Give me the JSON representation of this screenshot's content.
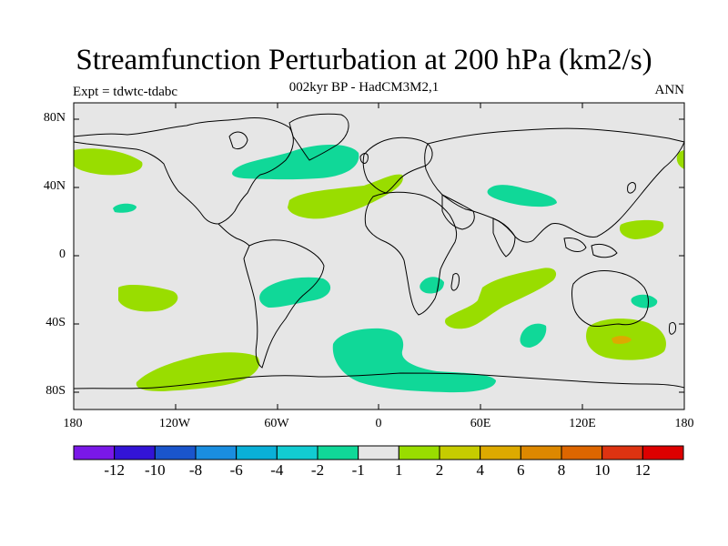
{
  "header": {
    "title": "Streamfunction Perturbation at 200 hPa (km2/s)",
    "subtitle": "002kyr BP - HadCM3M2,1",
    "left_string": "Expt = tdwtc-tdabc",
    "right_string": "ANN"
  },
  "axes": {
    "lat_labels": [
      "80N",
      "40N",
      "0",
      "40S",
      "80S"
    ],
    "lon_labels": [
      "180",
      "120W",
      "60W",
      "0",
      "60E",
      "120E",
      "180"
    ]
  },
  "colorbar": {
    "colors": [
      "#7a18e8",
      "#3314d6",
      "#1a55cc",
      "#1a8ee0",
      "#0ab0d8",
      "#12ccd2",
      "#10d898",
      "#e6e6e6",
      "#99dd00",
      "#c6cc00",
      "#ddaa00",
      "#dd8800",
      "#dd6600",
      "#dd3311",
      "#dd0000"
    ],
    "labels": [
      "-12",
      "-10",
      "-8",
      "-6",
      "-4",
      "-2",
      "-1",
      "1",
      "2",
      "4",
      "6",
      "8",
      "10",
      "12"
    ]
  },
  "legend": {
    "positive_color": "#99dd00",
    "negative_color": "#10d898",
    "strong_positive_color": "#ddaa00",
    "background_color": "#e6e6e6"
  }
}
